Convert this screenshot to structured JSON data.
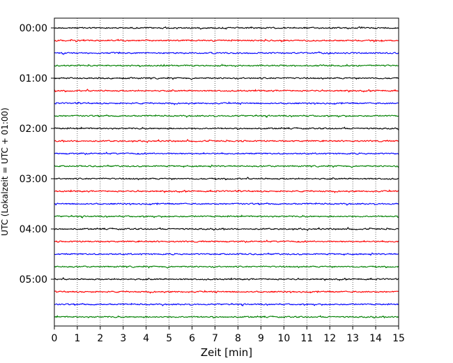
{
  "chart_data": {
    "type": "line",
    "title": "",
    "xlabel": "Zeit  [min]",
    "ylabel": "UTC (Lokalzeit = UTC + 01:00)",
    "xlim": [
      0,
      15
    ],
    "xticks": [
      0,
      1,
      2,
      3,
      4,
      5,
      6,
      7,
      8,
      9,
      10,
      11,
      12,
      13,
      14,
      15
    ],
    "xtick_labels": [
      "0",
      "1",
      "2",
      "3",
      "4",
      "5",
      "6",
      "7",
      "8",
      "9",
      "10",
      "11",
      "12",
      "13",
      "14",
      "15"
    ],
    "grid": "vertical dotted at each minute",
    "trace_interval_minutes": 15,
    "yticks": [
      "00:00",
      "01:00",
      "02:00",
      "03:00",
      "04:00",
      "05:00"
    ],
    "series_colors": [
      "#000000",
      "#ff0000",
      "#0000ff",
      "#008000"
    ],
    "traces": [
      {
        "start_utc": "00:00",
        "color": "#000000"
      },
      {
        "start_utc": "00:15",
        "color": "#ff0000"
      },
      {
        "start_utc": "00:30",
        "color": "#0000ff"
      },
      {
        "start_utc": "00:45",
        "color": "#008000"
      },
      {
        "start_utc": "01:00",
        "color": "#000000"
      },
      {
        "start_utc": "01:15",
        "color": "#ff0000"
      },
      {
        "start_utc": "01:30",
        "color": "#0000ff"
      },
      {
        "start_utc": "01:45",
        "color": "#008000"
      },
      {
        "start_utc": "02:00",
        "color": "#000000"
      },
      {
        "start_utc": "02:15",
        "color": "#ff0000"
      },
      {
        "start_utc": "02:30",
        "color": "#0000ff"
      },
      {
        "start_utc": "02:45",
        "color": "#008000"
      },
      {
        "start_utc": "03:00",
        "color": "#000000"
      },
      {
        "start_utc": "03:15",
        "color": "#ff0000"
      },
      {
        "start_utc": "03:30",
        "color": "#0000ff"
      },
      {
        "start_utc": "03:45",
        "color": "#008000"
      },
      {
        "start_utc": "04:00",
        "color": "#000000"
      },
      {
        "start_utc": "04:15",
        "color": "#ff0000"
      },
      {
        "start_utc": "04:30",
        "color": "#0000ff"
      },
      {
        "start_utc": "04:45",
        "color": "#008000"
      },
      {
        "start_utc": "05:00",
        "color": "#000000"
      },
      {
        "start_utc": "05:15",
        "color": "#ff0000"
      },
      {
        "start_utc": "05:30",
        "color": "#0000ff"
      },
      {
        "start_utc": "05:45",
        "color": "#008000"
      }
    ]
  }
}
